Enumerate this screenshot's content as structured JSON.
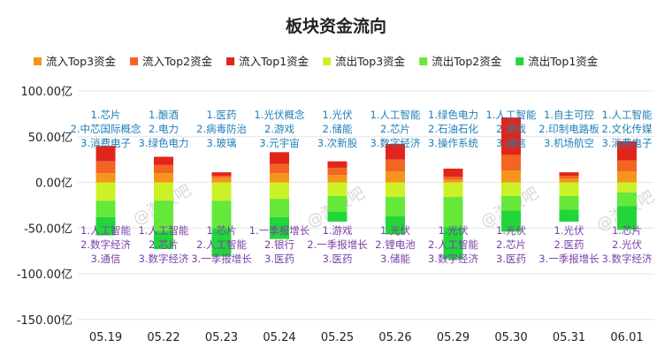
{
  "chart_data": {
    "type": "bar",
    "stacked": true,
    "title": "板块资金流向",
    "categories": [
      "05.19",
      "05.22",
      "05.23",
      "05.24",
      "05.25",
      "05.26",
      "05.29",
      "05.30",
      "05.31",
      "06.01"
    ],
    "ylim": [
      -150,
      100
    ],
    "yticks": [
      100,
      50,
      0,
      -50,
      -100,
      -150
    ],
    "ytick_labels": [
      "100.00亿",
      "50.00亿",
      "0.00亿",
      "-50.00亿",
      "-100.00亿",
      "-150.00亿"
    ],
    "grid": true,
    "legend_position": "top",
    "series": [
      {
        "name": "流入Top3资金",
        "color": "#f7941d",
        "values": [
          10,
          10,
          5,
          10,
          8,
          12,
          3,
          13,
          4,
          12
        ]
      },
      {
        "name": "流入Top2资金",
        "color": "#f26522",
        "values": [
          13,
          9,
          2,
          10,
          8,
          13,
          3,
          17,
          3,
          12
        ]
      },
      {
        "name": "流入Top1资金",
        "color": "#e1251b",
        "values": [
          17,
          9,
          4,
          13,
          7,
          17,
          9,
          41,
          4,
          21
        ]
      },
      {
        "name": "流出Top3资金",
        "color": "#ccf227",
        "values": [
          -20,
          -20,
          -20,
          -18,
          -15,
          -16,
          -16,
          -15,
          -15,
          -11
        ]
      },
      {
        "name": "流出Top2资金",
        "color": "#66e83a",
        "values": [
          -18,
          -33,
          -30,
          -20,
          -17,
          -21,
          -33,
          -16,
          -15,
          -15
        ]
      },
      {
        "name": "流出Top1资金",
        "color": "#22d63a",
        "values": [
          -20,
          -20,
          -31,
          -24,
          -11,
          -20,
          -35,
          -23,
          -13,
          -26
        ]
      }
    ],
    "inflow_labels": [
      [
        "1.芯片",
        "2.中芯国际概念",
        "3.消费电子"
      ],
      [
        "1.酿酒",
        "2.电力",
        "3.绿色电力"
      ],
      [
        "1.医药",
        "2.病毒防治",
        "3.玻璃"
      ],
      [
        "1.光伏概念",
        "2.游戏",
        "3.元宇宙"
      ],
      [
        "1.光伏",
        "2.储能",
        "3.次新股"
      ],
      [
        "1.人工智能",
        "2.芯片",
        "3.数字经济"
      ],
      [
        "1.绿色电力",
        "2.石油石化",
        "3.操作系统"
      ],
      [
        "1.人工智能",
        "2.游戏",
        "3.通信"
      ],
      [
        "1.自主可控",
        "2.印制电路板",
        "3.机场航空"
      ],
      [
        "1.人工智能",
        "2.文化传媒",
        "3.消费电子"
      ]
    ],
    "outflow_labels": [
      [
        "1.人工智能",
        "2.数字经济",
        "3.通信"
      ],
      [
        "1.人工智能",
        "2.芯片",
        "3.数字经济"
      ],
      [
        "1.芯片",
        "2.人工智能",
        "3.一季报增长"
      ],
      [
        "1.一季报增长",
        "2.银行",
        "3.医药"
      ],
      [
        "1.游戏",
        "2.一季报增长",
        "3.医药"
      ],
      [
        "1.光伏",
        "2.锂电池",
        "3.储能"
      ],
      [
        "1.光伏",
        "2.人工智能",
        "3.数字经济"
      ],
      [
        "1.光伏",
        "2.芯片",
        "3.医药"
      ],
      [
        "1.光伏",
        "2.医药",
        "3.一季报增长"
      ],
      [
        "1.芯片",
        "2.光伏",
        "3.数字经济"
      ]
    ]
  }
}
